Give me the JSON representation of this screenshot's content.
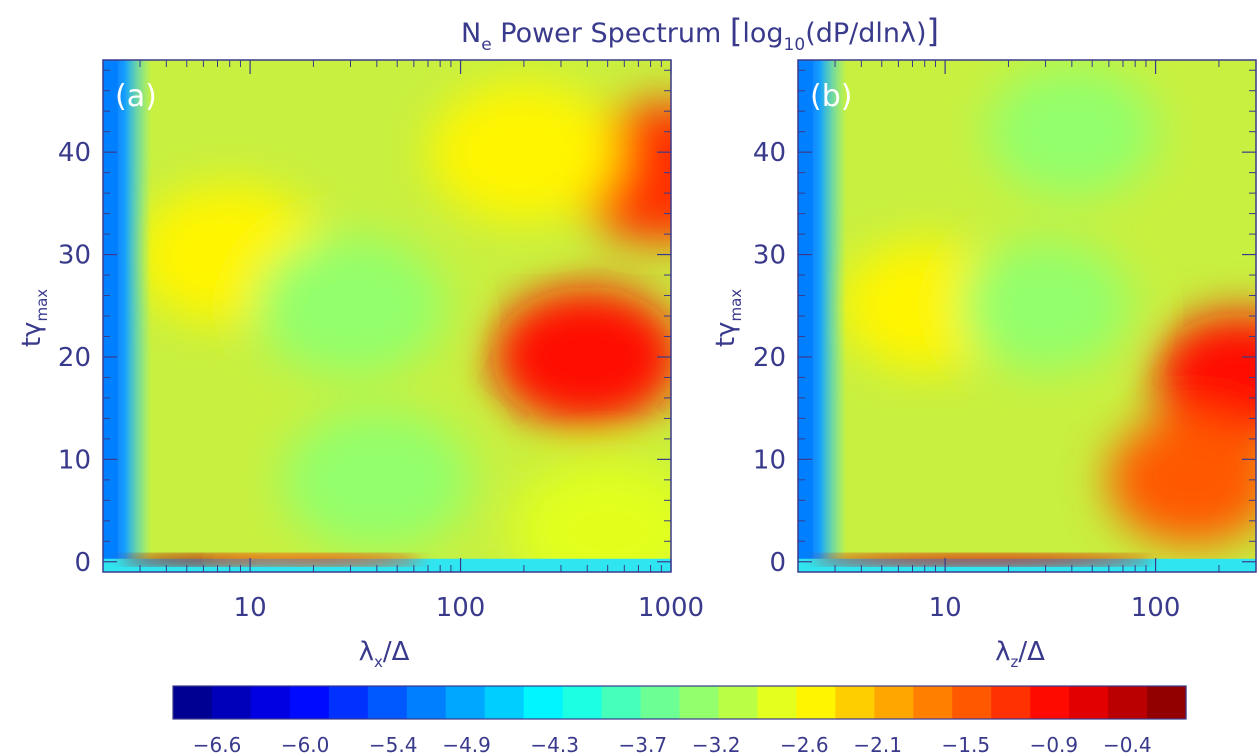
{
  "title": {
    "prefix": "N",
    "prefix_sub": "e",
    "middle": " Power Spectrum ",
    "log": "log",
    "log_sub": "10",
    "expr": "(dP/dlnλ)"
  },
  "chart_data": [
    {
      "type": "heatmap",
      "panel_label": "(a)",
      "xlabel": {
        "base": "λ",
        "sub": "x",
        "rest": "/Δ"
      },
      "ylabel": {
        "base": "tγ",
        "sub": "max"
      },
      "x_scale": "log",
      "xlim": [
        2,
        1000
      ],
      "ylim": [
        -1,
        49
      ],
      "xticks": [
        10,
        100,
        1000
      ],
      "xtick_labels": [
        "10",
        "100",
        "1000"
      ],
      "yticks": [
        0,
        10,
        20,
        30,
        40
      ],
      "ytick_labels": [
        "0",
        "10",
        "20",
        "30",
        "40"
      ],
      "features": [
        {
          "x": 2.5,
          "y": 24,
          "value": -4.3
        },
        {
          "x": 8,
          "y": 0,
          "value": -0.4
        },
        {
          "x": 20,
          "y": 0.5,
          "value": -1.3
        },
        {
          "x": 8,
          "y": 30,
          "value": -2.6
        },
        {
          "x": 30,
          "y": 25,
          "value": -3.2
        },
        {
          "x": 40,
          "y": 8,
          "value": -3.2
        },
        {
          "x": 400,
          "y": 20,
          "value": -0.9
        },
        {
          "x": 900,
          "y": 38,
          "value": -1.3
        },
        {
          "x": 200,
          "y": 40,
          "value": -2.4
        },
        {
          "x": 500,
          "y": 3,
          "value": -2.8
        }
      ]
    },
    {
      "type": "heatmap",
      "panel_label": "(b)",
      "xlabel": {
        "base": "λ",
        "sub": "z",
        "rest": "/Δ"
      },
      "ylabel": {
        "base": "tγ",
        "sub": "max"
      },
      "x_scale": "log",
      "xlim": [
        2,
        300
      ],
      "ylim": [
        -1,
        49
      ],
      "xticks": [
        10,
        100
      ],
      "xtick_labels": [
        "10",
        "100"
      ],
      "yticks": [
        0,
        10,
        20,
        30,
        40
      ],
      "ytick_labels": [
        "0",
        "10",
        "20",
        "30",
        "40"
      ],
      "features": [
        {
          "x": 2.5,
          "y": 24,
          "value": -4.3
        },
        {
          "x": 15,
          "y": 0,
          "value": -0.7
        },
        {
          "x": 8,
          "y": 25,
          "value": -2.6
        },
        {
          "x": 30,
          "y": 25,
          "value": -3.2
        },
        {
          "x": 40,
          "y": 42,
          "value": -3.4
        },
        {
          "x": 250,
          "y": 18,
          "value": -0.9
        },
        {
          "x": 150,
          "y": 8,
          "value": -1.5
        }
      ]
    }
  ],
  "colorbar": {
    "min": -6.9,
    "max": 0.0,
    "ticks": [
      -6.6,
      -6.0,
      -5.4,
      -4.9,
      -4.3,
      -3.7,
      -3.2,
      -2.6,
      -2.1,
      -1.5,
      -0.9,
      -0.4
    ],
    "tick_labels": [
      "−6.6",
      "−6.0",
      "−5.4",
      "−4.9",
      "−4.3",
      "−3.7",
      "−3.2",
      "−2.6",
      "−2.1",
      "−1.5",
      "−0.9",
      "−0.4"
    ],
    "colormap": "jet",
    "levels": 26
  }
}
